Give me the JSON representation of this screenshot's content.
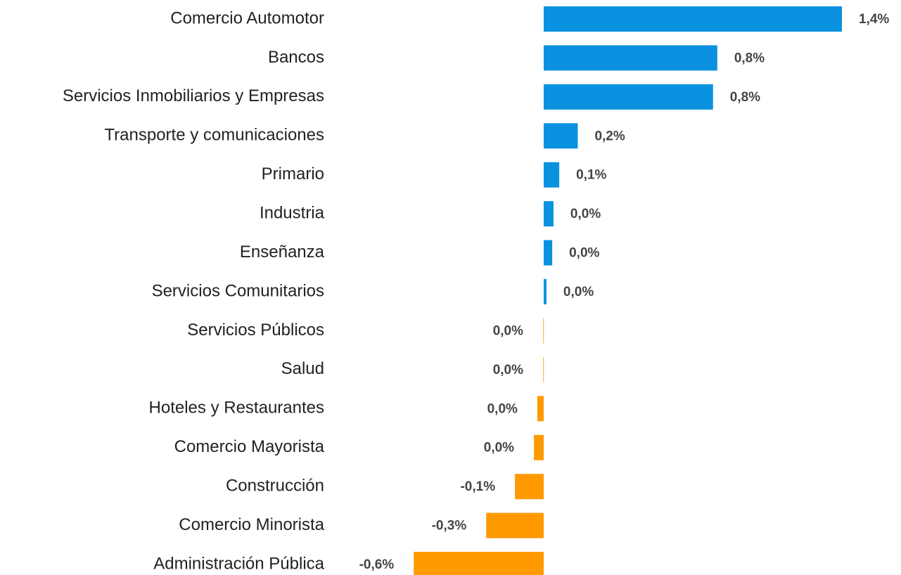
{
  "chart_data": {
    "type": "bar",
    "orientation": "horizontal",
    "categories": [
      "Comercio Automotor",
      "Bancos",
      "Servicios Inmobiliarios y Empresas",
      "Transporte y comunicaciones",
      "Primario",
      "Industria",
      "Enseñanza",
      "Servicios Comunitarios",
      "Servicios Públicos",
      "Salud",
      "Hoteles y Restaurantes",
      "Comercio Mayorista",
      "Construcción",
      "Comercio Minorista",
      "Administración Pública"
    ],
    "values": [
      1.4,
      0.815,
      0.795,
      0.16,
      0.073,
      0.046,
      0.04,
      0.013,
      -0.002,
      -0.002,
      -0.03,
      -0.046,
      -0.135,
      -0.27,
      -0.61
    ],
    "value_labels": [
      "1,4%",
      "0,8%",
      "0,8%",
      "0,2%",
      "0,1%",
      "0,0%",
      "0,0%",
      "0,0%",
      "0,0%",
      "0,0%",
      "0,0%",
      "0,0%",
      "-0,1%",
      "-0,3%",
      "-0,6%"
    ],
    "colors": {
      "positive": "#0a92e0",
      "negative": "#ff9900"
    }
  }
}
